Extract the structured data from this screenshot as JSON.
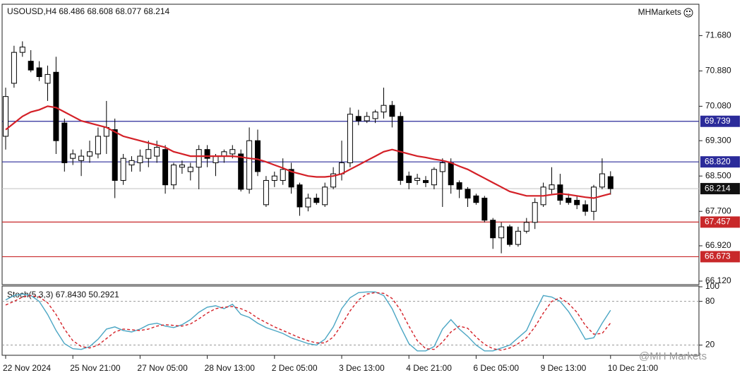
{
  "chart_data": [
    {
      "type": "candlestick",
      "title": "USOUSD,H4 68.486 68.608 68.077 68.214",
      "brand": "MHMarkets",
      "watermark": "@MH Markets",
      "categories": [
        "22 Nov 2024",
        null,
        null,
        null,
        null,
        null,
        null,
        null,
        "25 Nov 21:00",
        null,
        null,
        null,
        null,
        null,
        null,
        null,
        "27 Nov 05:00",
        null,
        null,
        null,
        null,
        null,
        null,
        null,
        "28 Nov 13:00",
        null,
        null,
        null,
        null,
        null,
        null,
        null,
        "2 Dec 05:00",
        null,
        null,
        null,
        null,
        null,
        null,
        null,
        "3 Dec 13:00",
        null,
        null,
        null,
        null,
        null,
        null,
        null,
        "4 Dec 21:00",
        null,
        null,
        null,
        null,
        null,
        null,
        null,
        "6 Dec 05:00",
        null,
        null,
        null,
        null,
        null,
        null,
        null,
        "9 Dec 13:00",
        null,
        null,
        null,
        null,
        null,
        null,
        null,
        "10 Dec 21:00"
      ],
      "open": [
        69.4,
        70.6,
        71.3,
        71.1,
        70.95,
        70.6,
        70.85,
        69.7,
        68.9,
        68.85,
        68.95,
        69.0,
        69.4,
        69.55,
        68.4,
        68.75,
        68.8,
        68.9,
        68.95,
        69.1,
        68.3,
        68.7,
        68.6,
        68.7,
        69.1,
        68.8,
        68.95,
        69.0,
        69.0,
        68.2,
        69.3,
        67.85,
        68.4,
        68.4,
        68.65,
        68.3,
        67.8,
        68.0,
        67.85,
        68.25,
        68.55,
        68.8,
        69.85,
        69.75,
        69.8,
        69.95,
        70.1,
        69.85,
        68.5,
        68.4,
        68.4,
        68.3,
        68.6,
        68.8,
        68.35,
        68.2,
        68.05,
        68.0,
        67.5,
        67.1,
        67.35,
        66.95,
        67.25,
        67.45,
        67.85,
        68.2,
        68.3,
        68.0,
        67.95,
        67.85,
        67.7,
        68.25,
        68.486
      ],
      "high": [
        70.5,
        71.45,
        71.55,
        71.35,
        71.1,
        71.0,
        71.2,
        69.8,
        69.1,
        69.1,
        69.3,
        69.6,
        70.2,
        69.8,
        69.0,
        68.95,
        69.1,
        69.3,
        69.3,
        69.2,
        68.8,
        68.85,
        68.8,
        69.2,
        69.2,
        69.0,
        69.1,
        69.2,
        69.1,
        69.6,
        69.55,
        68.5,
        68.6,
        68.9,
        68.8,
        68.35,
        68.1,
        68.1,
        68.35,
        68.7,
        69.3,
        70.05,
        70.0,
        69.95,
        70.0,
        70.5,
        70.2,
        69.95,
        68.6,
        68.55,
        68.5,
        68.7,
        68.9,
        68.9,
        68.4,
        68.25,
        68.1,
        68.05,
        67.55,
        67.45,
        67.4,
        67.35,
        67.55,
        68.0,
        68.35,
        68.7,
        68.55,
        68.1,
        68.05,
        67.95,
        68.3,
        68.9,
        68.608
      ],
      "low": [
        69.1,
        70.5,
        71.2,
        70.85,
        70.65,
        70.2,
        69.0,
        68.6,
        68.75,
        68.5,
        68.8,
        68.9,
        69.0,
        68.0,
        68.3,
        68.6,
        68.6,
        68.7,
        68.8,
        68.1,
        68.2,
        68.55,
        68.4,
        68.2,
        68.7,
        68.5,
        68.8,
        68.9,
        68.15,
        68.1,
        68.5,
        67.8,
        68.25,
        68.3,
        68.1,
        67.6,
        67.7,
        67.85,
        67.8,
        68.2,
        68.4,
        68.7,
        69.65,
        69.7,
        69.7,
        69.8,
        69.6,
        68.3,
        68.2,
        68.3,
        68.25,
        68.2,
        67.8,
        68.1,
        68.0,
        67.8,
        67.85,
        67.45,
        66.85,
        66.75,
        66.9,
        66.9,
        67.2,
        67.3,
        67.8,
        68.1,
        67.85,
        67.85,
        67.75,
        67.6,
        67.5,
        68.2,
        68.077
      ],
      "close": [
        70.3,
        71.3,
        71.42,
        70.9,
        70.75,
        70.8,
        69.3,
        68.8,
        69.0,
        68.95,
        69.05,
        69.4,
        69.6,
        68.4,
        68.9,
        68.85,
        68.95,
        69.1,
        69.15,
        68.3,
        68.75,
        68.75,
        68.7,
        69.1,
        68.9,
        68.95,
        69.05,
        69.1,
        68.2,
        69.3,
        68.6,
        68.4,
        68.5,
        68.65,
        68.25,
        67.8,
        68.0,
        67.9,
        68.25,
        68.55,
        68.8,
        69.9,
        69.75,
        69.85,
        69.95,
        70.1,
        69.85,
        68.4,
        68.35,
        68.45,
        68.35,
        68.65,
        68.8,
        68.3,
        68.2,
        68.0,
        67.9,
        67.5,
        67.1,
        67.35,
        66.95,
        67.25,
        67.45,
        67.9,
        68.25,
        68.3,
        67.95,
        67.9,
        67.85,
        67.7,
        68.25,
        68.55,
        68.214
      ],
      "bull_color": "#ffffff",
      "bear_color": "#000000",
      "wick_color": "#000000",
      "ma": {
        "color": "#d42027",
        "values": [
          69.55,
          69.7,
          69.85,
          69.95,
          70.0,
          70.08,
          70.05,
          69.95,
          69.85,
          69.75,
          69.7,
          69.65,
          69.6,
          69.5,
          69.4,
          69.35,
          69.3,
          69.25,
          69.2,
          69.15,
          69.05,
          69.0,
          68.95,
          68.95,
          68.95,
          68.95,
          68.95,
          68.95,
          68.93,
          68.9,
          68.88,
          68.82,
          68.75,
          68.68,
          68.6,
          68.55,
          68.5,
          68.48,
          68.48,
          68.5,
          68.55,
          68.65,
          68.75,
          68.85,
          68.95,
          69.05,
          69.1,
          69.05,
          69.0,
          68.95,
          68.92,
          68.88,
          68.85,
          68.8,
          68.72,
          68.65,
          68.55,
          68.45,
          68.35,
          68.25,
          68.15,
          68.1,
          68.05,
          68.05,
          68.05,
          68.08,
          68.1,
          68.08,
          68.05,
          68.02,
          68.0,
          68.05,
          68.1
        ]
      },
      "ylim": [
        66.04,
        72.39
      ],
      "yticks": [
        {
          "value": 71.68,
          "label": "71.680"
        },
        {
          "value": 70.88,
          "label": "70.880"
        },
        {
          "value": 70.08,
          "label": "70.080"
        },
        {
          "value": 69.3,
          "label": "69.300"
        },
        {
          "value": 68.5,
          "label": "68.500"
        },
        {
          "value": 67.7,
          "label": "67.700"
        },
        {
          "value": 66.92,
          "label": "66.920"
        },
        {
          "value": 66.12,
          "label": "66.120"
        }
      ],
      "levels": [
        {
          "value": 69.739,
          "label": "69.739",
          "color": "#2b2b9a"
        },
        {
          "value": 68.82,
          "label": "68.820",
          "color": "#2b2b9a"
        },
        {
          "value": 68.214,
          "label": "68.214",
          "color": "#111111",
          "line_color": "#c8c8c8"
        },
        {
          "value": 67.457,
          "label": "67.457",
          "color": "#c8282a"
        },
        {
          "value": 66.673,
          "label": "66.673",
          "color": "#c8282a"
        }
      ]
    },
    {
      "type": "line",
      "title": "Stoch(5,3,3) 67.8430 50.2921",
      "series": [
        {
          "color": "#4ba6c4",
          "dashed": false,
          "values": [
            82,
            88,
            90,
            88,
            80,
            62,
            40,
            22,
            15,
            14,
            18,
            28,
            42,
            45,
            40,
            38,
            42,
            48,
            50,
            46,
            44,
            48,
            55,
            65,
            72,
            74,
            70,
            76,
            62,
            58,
            50,
            44,
            40,
            36,
            30,
            26,
            22,
            20,
            28,
            45,
            70,
            85,
            92,
            93,
            93,
            88,
            70,
            45,
            22,
            12,
            12,
            18,
            42,
            55,
            42,
            32,
            20,
            12,
            12,
            16,
            20,
            30,
            40,
            65,
            88,
            86,
            80,
            66,
            48,
            28,
            30,
            50,
            67.843
          ]
        },
        {
          "color": "#d42027",
          "dashed": true,
          "values": [
            75,
            80,
            86,
            88,
            86,
            78,
            62,
            42,
            26,
            18,
            16,
            20,
            29,
            38,
            42,
            41,
            40,
            42,
            46,
            48,
            47,
            46,
            49,
            56,
            64,
            70,
            72,
            73,
            70,
            65,
            57,
            51,
            45,
            40,
            35,
            30,
            26,
            23,
            23,
            31,
            48,
            67,
            82,
            90,
            92,
            91,
            84,
            68,
            46,
            26,
            15,
            14,
            24,
            38,
            46,
            43,
            31,
            21,
            15,
            13,
            16,
            22,
            30,
            45,
            64,
            80,
            85,
            77,
            65,
            47,
            35,
            36,
            50.2921
          ]
        }
      ],
      "ylim": [
        6,
        101
      ],
      "yticks": [
        100,
        80,
        20
      ],
      "levels": [
        80,
        20
      ]
    }
  ]
}
